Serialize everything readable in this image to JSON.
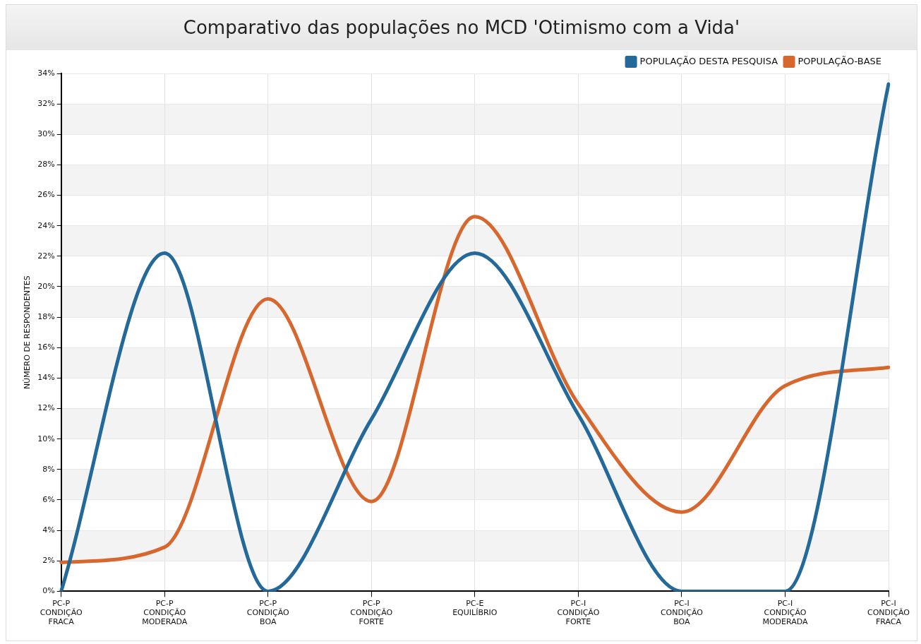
{
  "chart_data": {
    "type": "line",
    "title": "Comparativo das populações no MCD 'Otimismo com a Vida'",
    "ylabel": "NÚMERO DE RESPONDENTES",
    "categories": [
      "PC-P CONDIÇÃO FRACA",
      "PC-P CONDIÇÃO MODERADA",
      "PC-P CONDIÇÃO BOA",
      "PC-P CONDIÇÃO FORTE",
      "PC-E EQUILÍBRIO",
      "PC-I CONDIÇÃO FORTE",
      "PC-I CONDIÇÃO BOA",
      "PC-I CONDIÇÃO MODERADA",
      "PC-I CONDIÇÃO FRACA"
    ],
    "series": [
      {
        "name": "POPULAÇÃO DESTA PESQUISA",
        "color": "#23699a",
        "values": [
          0,
          22.2,
          0,
          11.3,
          22.2,
          11.6,
          0,
          0,
          33.3
        ]
      },
      {
        "name": "POPULAÇÃO-BASE",
        "color": "#d8672e",
        "values": [
          1.9,
          2.9,
          19.2,
          5.9,
          24.6,
          12.3,
          5.2,
          13.5,
          14.7
        ]
      }
    ],
    "ylim": [
      0,
      34
    ],
    "yticks": [
      {
        "value": 0,
        "label": "0%"
      },
      {
        "value": 2,
        "label": "2%"
      },
      {
        "value": 4,
        "label": "4%"
      },
      {
        "value": 6,
        "label": "6%"
      },
      {
        "value": 8,
        "label": "8%"
      },
      {
        "value": 10,
        "label": "10%"
      },
      {
        "value": 12,
        "label": "12%"
      },
      {
        "value": 14,
        "label": "14%"
      },
      {
        "value": 16,
        "label": "16%"
      },
      {
        "value": 18,
        "label": "18%"
      },
      {
        "value": 20,
        "label": "20%"
      },
      {
        "value": 22,
        "label": "22%"
      },
      {
        "value": 24,
        "label": "24%"
      },
      {
        "value": 26,
        "label": "26%"
      },
      {
        "value": 28,
        "label": "28%"
      },
      {
        "value": 30,
        "label": "30%"
      },
      {
        "value": 32,
        "label": "32%"
      },
      {
        "value": 34,
        "label": "34%"
      }
    ],
    "grid": true,
    "legend": "top right",
    "marker": "none",
    "line_style": "solid"
  }
}
